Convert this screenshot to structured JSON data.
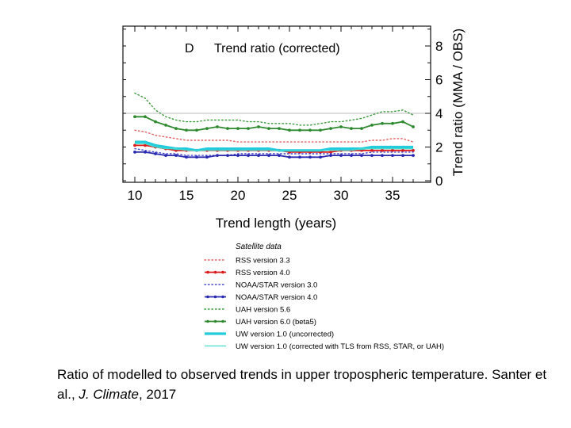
{
  "chart_data": {
    "type": "line",
    "panel_label": "D",
    "title": "Trend ratio (corrected)",
    "xlabel": "Trend length (years)",
    "ylabel": "Trend ratio (MMA / OBS)",
    "xlim": [
      10,
      37
    ],
    "ylim": [
      0,
      9
    ],
    "x_ticks": [
      "10",
      "15",
      "20",
      "25",
      "30",
      "35"
    ],
    "y_ticks": [
      "0",
      "2",
      "4",
      "6",
      "8"
    ],
    "reference_line_y": 4,
    "x": [
      10,
      11,
      12,
      13,
      14,
      15,
      16,
      17,
      18,
      19,
      20,
      21,
      22,
      23,
      24,
      25,
      26,
      27,
      28,
      29,
      30,
      31,
      32,
      33,
      34,
      35,
      36,
      37
    ],
    "legend_title": "Satellite data",
    "series": [
      {
        "name": "RSS version 3.3",
        "color": "#e06060",
        "style": "dotted",
        "markers": false,
        "values": [
          3.0,
          2.9,
          2.7,
          2.6,
          2.5,
          2.4,
          2.4,
          2.4,
          2.4,
          2.4,
          2.3,
          2.3,
          2.3,
          2.3,
          2.3,
          2.3,
          2.3,
          2.3,
          2.3,
          2.3,
          2.3,
          2.3,
          2.3,
          2.4,
          2.4,
          2.5,
          2.5,
          2.3
        ]
      },
      {
        "name": "RSS version 4.0",
        "color": "#dd1a1a",
        "style": "solid",
        "markers": true,
        "values": [
          2.1,
          2.1,
          2.0,
          1.9,
          1.8,
          1.8,
          1.8,
          1.8,
          1.8,
          1.8,
          1.8,
          1.8,
          1.8,
          1.8,
          1.8,
          1.7,
          1.7,
          1.7,
          1.7,
          1.7,
          1.8,
          1.8,
          1.8,
          1.8,
          1.8,
          1.8,
          1.8,
          1.8
        ]
      },
      {
        "name": "NOAA/STAR version 3.0",
        "color": "#4444cc",
        "style": "dotted",
        "markers": false,
        "values": [
          1.9,
          1.8,
          1.7,
          1.6,
          1.6,
          1.5,
          1.5,
          1.5,
          1.5,
          1.5,
          1.6,
          1.6,
          1.6,
          1.6,
          1.6,
          1.6,
          1.6,
          1.6,
          1.6,
          1.6,
          1.6,
          1.6,
          1.6,
          1.7,
          1.7,
          1.7,
          1.7,
          1.7
        ]
      },
      {
        "name": "NOAA/STAR version 4.0",
        "color": "#2a2ab0",
        "style": "solid",
        "markers": true,
        "values": [
          1.7,
          1.7,
          1.6,
          1.5,
          1.5,
          1.4,
          1.4,
          1.4,
          1.5,
          1.5,
          1.5,
          1.5,
          1.5,
          1.5,
          1.5,
          1.4,
          1.4,
          1.4,
          1.4,
          1.5,
          1.5,
          1.5,
          1.5,
          1.5,
          1.5,
          1.5,
          1.5,
          1.5
        ]
      },
      {
        "name": "UAH version 5.6",
        "color": "#3a9a3a",
        "style": "dotted",
        "markers": false,
        "values": [
          5.2,
          4.9,
          4.2,
          3.8,
          3.6,
          3.5,
          3.5,
          3.6,
          3.6,
          3.6,
          3.6,
          3.5,
          3.5,
          3.4,
          3.4,
          3.4,
          3.3,
          3.3,
          3.4,
          3.5,
          3.5,
          3.6,
          3.7,
          3.9,
          4.1,
          4.1,
          4.2,
          3.9
        ]
      },
      {
        "name": "UAH version 6.0 (beta5)",
        "color": "#2f8a2f",
        "style": "solid",
        "markers": true,
        "values": [
          3.8,
          3.8,
          3.5,
          3.3,
          3.1,
          3.0,
          3.0,
          3.1,
          3.2,
          3.1,
          3.1,
          3.1,
          3.2,
          3.1,
          3.1,
          3.0,
          3.0,
          3.0,
          3.0,
          3.1,
          3.2,
          3.1,
          3.1,
          3.3,
          3.4,
          3.4,
          3.5,
          3.2
        ]
      },
      {
        "name": "UW version 1.0 (uncorrected)",
        "color": "#22ccdd",
        "style": "thick",
        "markers": false,
        "values": [
          2.3,
          2.3,
          2.1,
          2.0,
          1.9,
          1.9,
          1.8,
          1.9,
          1.9,
          1.9,
          1.9,
          1.9,
          1.9,
          1.9,
          1.8,
          1.8,
          1.8,
          1.8,
          1.8,
          1.9,
          1.9,
          1.9,
          1.9,
          2.0,
          2.0,
          2.0,
          2.0,
          2.0
        ]
      },
      {
        "name": "UW version 1.0 (corrected with TLS from RSS, STAR, or UAH)",
        "color": "#44ddcc",
        "style": "thin",
        "markers": false,
        "values": [
          2.2,
          2.2,
          2.0,
          1.9,
          1.9,
          1.8,
          1.8,
          1.8,
          1.8,
          1.8,
          1.8,
          1.8,
          1.8,
          1.8,
          1.8,
          1.8,
          1.8,
          1.8,
          1.8,
          1.8,
          1.8,
          1.8,
          1.9,
          1.9,
          1.9,
          1.9,
          1.9,
          1.9
        ]
      }
    ]
  },
  "caption": {
    "text1": "Ratio of modelled to observed trends in upper tropospheric temperature. Santer et al., ",
    "journal": "J. Climate",
    "text2": ", 2017"
  }
}
